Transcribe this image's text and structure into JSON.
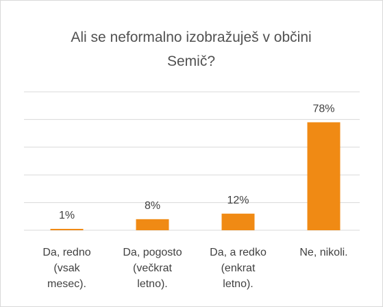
{
  "chart_data": {
    "type": "bar",
    "title": "Ali se neformalno izobražuješ v občini Semič?",
    "categories": [
      "Da, redno (vsak mesec).",
      "Da, pogosto (večkrat letno).",
      "Da, a redko (enkrat letno).",
      "Ne, nikoli."
    ],
    "values": [
      1,
      8,
      12,
      78
    ],
    "value_labels": [
      "1%",
      "8%",
      "12%",
      "78%"
    ],
    "color": "#f08a14",
    "ylim": [
      0,
      100
    ],
    "yticks": [
      0,
      20,
      40,
      60,
      80,
      100
    ],
    "grid": true
  }
}
